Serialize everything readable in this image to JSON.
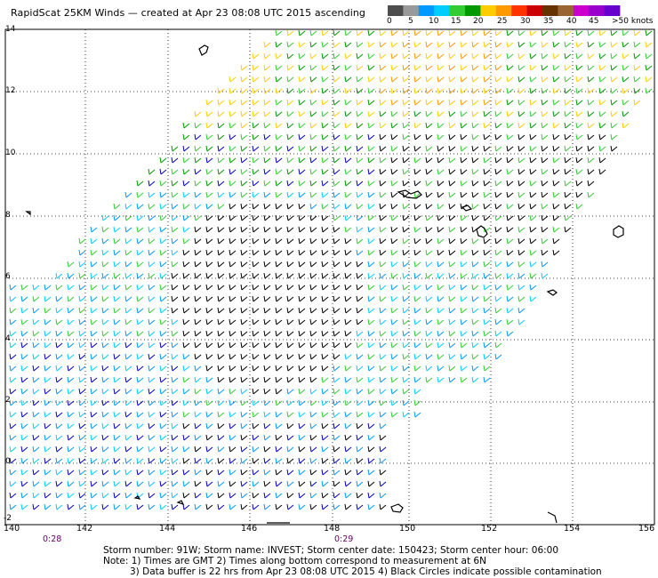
{
  "title": "RapidScat 25KM Winds — created at Apr 23 08:08 UTC 2015 ascending",
  "legend": {
    "colors": [
      "#4d4d4d",
      "#999999",
      "#0099ff",
      "#00ccff",
      "#33cc33",
      "#009900",
      "#ffcc00",
      "#ff9900",
      "#ff3300",
      "#cc0000",
      "#663300",
      "#996633",
      "#cc00cc",
      "#9900cc",
      "#6600cc"
    ],
    "labels": [
      "0",
      "5",
      "10",
      "15",
      "20",
      "25",
      "30",
      "35",
      "40",
      "45",
      ">50 knots"
    ]
  },
  "axes": {
    "y_labels": [
      "14",
      "12",
      "10",
      "8",
      "6",
      "4",
      "2",
      "0",
      "-2"
    ],
    "x_labels": [
      "140",
      "142",
      "144",
      "146",
      "148",
      "150",
      "152",
      "154",
      "156"
    ]
  },
  "times": [
    "0:28",
    "0:29"
  ],
  "footer": {
    "line1": "Storm number: 91W;  Storm name: INVEST;  Storm center date: 150423;  Storm center hour: 06:00",
    "line2": "Note: 1) Times are GMT  2) Times along bottom correspond to measurement at 6N",
    "line3": "3) Data buffer is 22 hrs from Apr 23 08:08 UTC 2015   4) Black Circles indicate possible contamination"
  }
}
